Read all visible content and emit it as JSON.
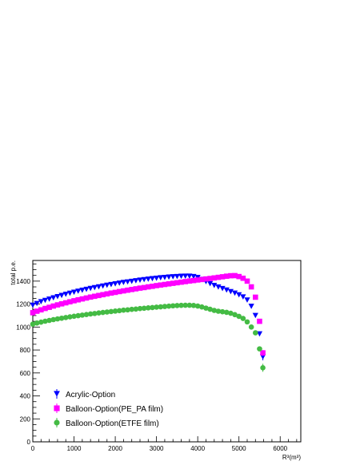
{
  "chart_data": {
    "type": "scatter",
    "xlabel": "R³(m³)",
    "ylabel": "total p.e.",
    "xlim": [
      0,
      6500
    ],
    "ylim": [
      0,
      1580
    ],
    "x_ticks": [
      0,
      1000,
      2000,
      3000,
      4000,
      5000,
      6000
    ],
    "y_ticks": [
      0,
      200,
      400,
      600,
      800,
      1000,
      1200,
      1400
    ],
    "x_tick_labels": [
      "0",
      "1000",
      "2000",
      "3000",
      "4000",
      "5000",
      "6000"
    ],
    "y_tick_labels": [
      "0",
      "200",
      "400",
      "600",
      "800",
      "1000",
      "1200",
      "1400"
    ],
    "grid": false,
    "legend_position": "bottom-left",
    "series": [
      {
        "name": "Acrylic-Option",
        "color": "#0000ff",
        "marker": "triangle-down",
        "x": [
          0,
          100,
          200,
          300,
          400,
          500,
          600,
          700,
          800,
          900,
          1000,
          1100,
          1200,
          1300,
          1400,
          1500,
          1600,
          1700,
          1800,
          1900,
          2000,
          2100,
          2200,
          2300,
          2400,
          2500,
          2600,
          2700,
          2800,
          2900,
          3000,
          3100,
          3200,
          3300,
          3400,
          3500,
          3600,
          3700,
          3800,
          3900,
          4000,
          4100,
          4200,
          4300,
          4400,
          4500,
          4600,
          4700,
          4800,
          4900,
          5000,
          5100,
          5200,
          5300,
          5400,
          5500,
          5580
        ],
        "y": [
          1190,
          1205,
          1220,
          1232,
          1243,
          1254,
          1265,
          1275,
          1285,
          1294,
          1303,
          1312,
          1320,
          1328,
          1336,
          1343,
          1350,
          1357,
          1364,
          1370,
          1376,
          1382,
          1388,
          1393,
          1398,
          1403,
          1408,
          1413,
          1417,
          1421,
          1425,
          1429,
          1432,
          1435,
          1438,
          1440,
          1442,
          1443,
          1443,
          1440,
          1432,
          1415,
          1395,
          1378,
          1362,
          1348,
          1335,
          1322,
          1308,
          1295,
          1280,
          1262,
          1235,
          1180,
          1100,
          940,
          740
        ],
        "errors": [
          5,
          5,
          5,
          5,
          5,
          5,
          5,
          5,
          5,
          5,
          5,
          5,
          5,
          5,
          5,
          5,
          5,
          5,
          5,
          5,
          5,
          5,
          5,
          5,
          5,
          5,
          5,
          5,
          5,
          5,
          5,
          5,
          5,
          5,
          5,
          5,
          5,
          5,
          5,
          5,
          5,
          5,
          5,
          5,
          5,
          5,
          5,
          5,
          5,
          5,
          5,
          5,
          5,
          8,
          10,
          12,
          30
        ]
      },
      {
        "name": "Balloon-Option(PE_PA film)",
        "color": "#ff00ff",
        "marker": "square",
        "x": [
          0,
          100,
          200,
          300,
          400,
          500,
          600,
          700,
          800,
          900,
          1000,
          1100,
          1200,
          1300,
          1400,
          1500,
          1600,
          1700,
          1800,
          1900,
          2000,
          2100,
          2200,
          2300,
          2400,
          2500,
          2600,
          2700,
          2800,
          2900,
          3000,
          3100,
          3200,
          3300,
          3400,
          3500,
          3600,
          3700,
          3800,
          3900,
          4000,
          4100,
          4200,
          4300,
          4400,
          4500,
          4600,
          4700,
          4800,
          4900,
          5000,
          5100,
          5200,
          5300,
          5400,
          5500,
          5580
        ],
        "y": [
          1125,
          1138,
          1150,
          1162,
          1172,
          1183,
          1193,
          1202,
          1211,
          1220,
          1229,
          1237,
          1245,
          1253,
          1261,
          1268,
          1275,
          1282,
          1289,
          1296,
          1302,
          1309,
          1315,
          1321,
          1327,
          1333,
          1339,
          1344,
          1350,
          1355,
          1361,
          1366,
          1371,
          1376,
          1381,
          1386,
          1391,
          1396,
          1401,
          1405,
          1410,
          1414,
          1419,
          1423,
          1428,
          1433,
          1438,
          1443,
          1447,
          1448,
          1440,
          1425,
          1400,
          1350,
          1260,
          1050,
          775
        ],
        "errors": [
          5,
          5,
          5,
          5,
          5,
          5,
          5,
          5,
          5,
          5,
          5,
          5,
          5,
          5,
          5,
          5,
          5,
          5,
          5,
          5,
          5,
          5,
          5,
          5,
          5,
          5,
          5,
          5,
          5,
          5,
          5,
          5,
          5,
          5,
          5,
          5,
          5,
          5,
          5,
          5,
          5,
          5,
          5,
          5,
          5,
          5,
          5,
          5,
          5,
          5,
          5,
          5,
          5,
          8,
          10,
          12,
          25
        ]
      },
      {
        "name": "Balloon-Option(ETFE film)",
        "color": "#44bb44",
        "marker": "circle",
        "x": [
          0,
          100,
          200,
          300,
          400,
          500,
          600,
          700,
          800,
          900,
          1000,
          1100,
          1200,
          1300,
          1400,
          1500,
          1600,
          1700,
          1800,
          1900,
          2000,
          2100,
          2200,
          2300,
          2400,
          2500,
          2600,
          2700,
          2800,
          2900,
          3000,
          3100,
          3200,
          3300,
          3400,
          3500,
          3600,
          3700,
          3800,
          3900,
          4000,
          4100,
          4200,
          4300,
          4400,
          4500,
          4600,
          4700,
          4800,
          4900,
          5000,
          5100,
          5200,
          5300,
          5400,
          5500,
          5580
        ],
        "y": [
          1025,
          1035,
          1043,
          1051,
          1058,
          1065,
          1071,
          1077,
          1083,
          1089,
          1094,
          1099,
          1104,
          1109,
          1114,
          1118,
          1123,
          1127,
          1131,
          1135,
          1139,
          1143,
          1147,
          1150,
          1154,
          1157,
          1161,
          1164,
          1167,
          1170,
          1173,
          1176,
          1179,
          1182,
          1185,
          1187,
          1189,
          1190,
          1190,
          1188,
          1183,
          1175,
          1165,
          1155,
          1145,
          1138,
          1133,
          1128,
          1120,
          1108,
          1093,
          1075,
          1045,
          1000,
          950,
          810,
          645
        ],
        "errors": [
          5,
          5,
          5,
          5,
          5,
          5,
          5,
          5,
          5,
          5,
          5,
          5,
          5,
          5,
          5,
          5,
          5,
          5,
          5,
          5,
          5,
          5,
          5,
          5,
          5,
          5,
          5,
          5,
          5,
          5,
          5,
          5,
          5,
          5,
          5,
          5,
          5,
          5,
          5,
          5,
          5,
          5,
          5,
          5,
          5,
          5,
          5,
          5,
          5,
          5,
          5,
          5,
          5,
          8,
          10,
          15,
          35
        ]
      }
    ]
  }
}
